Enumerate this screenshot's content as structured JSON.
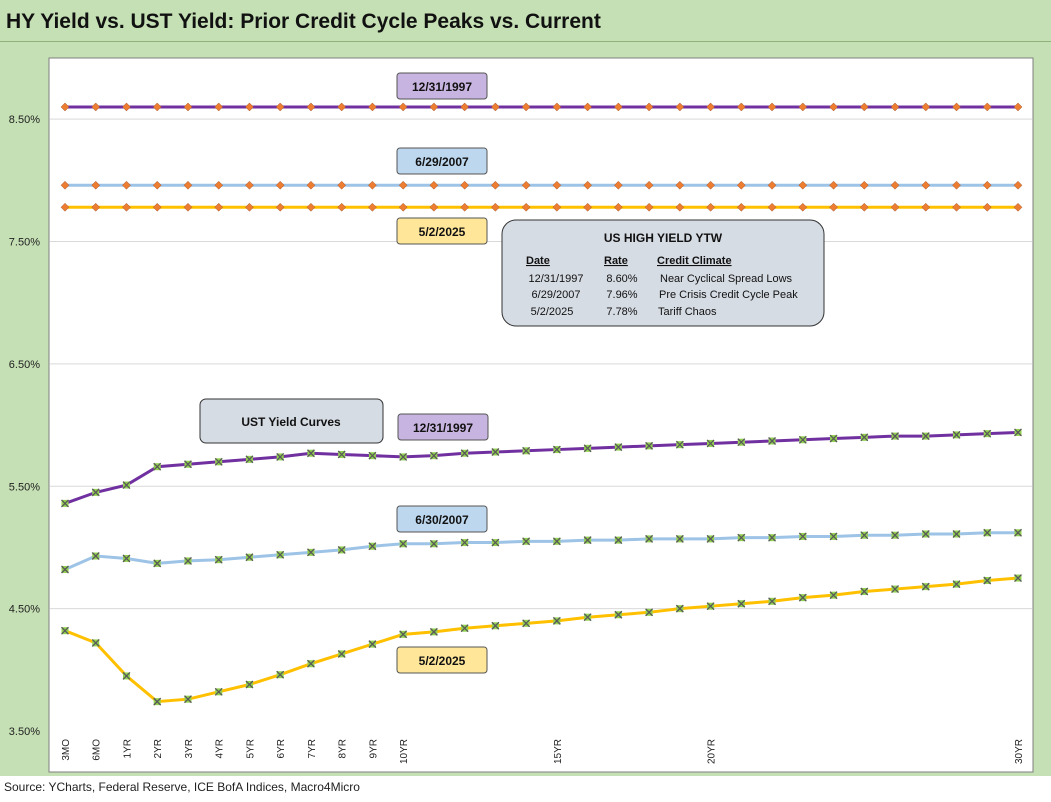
{
  "title": "HY Yield vs. UST Yield: Prior Credit Cycle Peaks vs. Current",
  "source": "Source: YCharts, Federal Reserve, ICE BofA Indices, Macro4Micro",
  "colors": {
    "purple": "#7030a0",
    "blue": "#9dc3e6",
    "gold": "#ffc000",
    "hy_marker": "#ed7d31",
    "ust_marker_fill": "#92d050",
    "ust_marker_cross": "#595959"
  },
  "chart_data": {
    "type": "line",
    "ylim": [
      3.5,
      9.0
    ],
    "y_ticks": [
      3.5,
      4.5,
      5.5,
      6.5,
      7.5,
      8.5
    ],
    "y_tick_labels": [
      "3.50%",
      "4.50%",
      "5.50%",
      "6.50%",
      "7.50%",
      "8.50%"
    ],
    "categories": [
      "3MO",
      "6MO",
      "1YR",
      "2YR",
      "3YR",
      "4YR",
      "5YR",
      "6YR",
      "7YR",
      "8YR",
      "9YR",
      "10YR",
      "11YR",
      "12YR",
      "13YR",
      "14YR",
      "15YR",
      "16YR",
      "17YR",
      "18YR",
      "19YR",
      "20YR",
      "21YR",
      "22YR",
      "23YR",
      "24YR",
      "25YR",
      "26YR",
      "27YR",
      "28YR",
      "29YR",
      "30YR"
    ],
    "x_tick_labels": [
      "3MO",
      "6MO",
      "1YR",
      "2YR",
      "3YR",
      "4YR",
      "5YR",
      "6YR",
      "7YR",
      "8YR",
      "9YR",
      "10YR",
      "",
      "",
      "",
      "",
      "15YR",
      "",
      "",
      "",
      "",
      "20YR",
      "",
      "",
      "",
      "",
      "",
      "",
      "",
      "",
      "",
      "30YR"
    ],
    "hy_series": [
      {
        "name": "12/31/1997",
        "color": "#ed7d31",
        "line": "#7030a0",
        "value": 8.6
      },
      {
        "name": "6/29/2007",
        "color": "#ed7d31",
        "line": "#9dc3e6",
        "value": 7.96
      },
      {
        "name": "5/2/2025",
        "color": "#ed7d31",
        "line": "#ffc000",
        "value": 7.78
      }
    ],
    "ust_series": [
      {
        "name": "12/31/1997",
        "line": "#7030a0",
        "values": [
          5.36,
          5.45,
          5.51,
          5.66,
          5.68,
          5.7,
          5.72,
          5.74,
          5.77,
          5.76,
          5.75,
          5.74,
          5.75,
          5.77,
          5.78,
          5.79,
          5.8,
          5.81,
          5.82,
          5.83,
          5.84,
          5.85,
          5.86,
          5.87,
          5.88,
          5.89,
          5.9,
          5.91,
          5.91,
          5.92,
          5.93,
          5.94
        ]
      },
      {
        "name": "6/30/2007",
        "line": "#9dc3e6",
        "values": [
          4.82,
          4.93,
          4.91,
          4.87,
          4.89,
          4.9,
          4.92,
          4.94,
          4.96,
          4.98,
          5.01,
          5.03,
          5.03,
          5.04,
          5.04,
          5.05,
          5.05,
          5.06,
          5.06,
          5.07,
          5.07,
          5.07,
          5.08,
          5.08,
          5.09,
          5.09,
          5.1,
          5.1,
          5.11,
          5.11,
          5.12,
          5.12
        ]
      },
      {
        "name": "5/2/2025",
        "line": "#ffc000",
        "values": [
          4.32,
          4.22,
          3.95,
          3.74,
          3.76,
          3.82,
          3.88,
          3.96,
          4.05,
          4.13,
          4.21,
          4.29,
          4.31,
          4.34,
          4.36,
          4.38,
          4.4,
          4.43,
          4.45,
          4.47,
          4.5,
          4.52,
          4.54,
          4.56,
          4.59,
          4.61,
          4.64,
          4.66,
          4.68,
          4.7,
          4.73,
          4.75
        ]
      }
    ],
    "callouts": {
      "hy_1997": "12/31/1997",
      "hy_2007": "6/29/2007",
      "hy_2025": "5/2/2025",
      "ust_title": "UST  Yield Curves",
      "ust_1997": "12/31/1997",
      "ust_2007": "6/30/2007",
      "ust_2025": "5/2/2025"
    },
    "table": {
      "title": "US HIGH YIELD YTW",
      "headers": [
        "Date",
        "Rate",
        "Credit Climate"
      ],
      "rows": [
        [
          "12/31/1997",
          "8.60%",
          "Near Cyclical Spread Lows"
        ],
        [
          "6/29/2007",
          "7.96%",
          "Pre Crisis Credit Cycle Peak"
        ],
        [
          "5/2/2025",
          "7.78%",
          "Tariff Chaos"
        ]
      ]
    }
  }
}
